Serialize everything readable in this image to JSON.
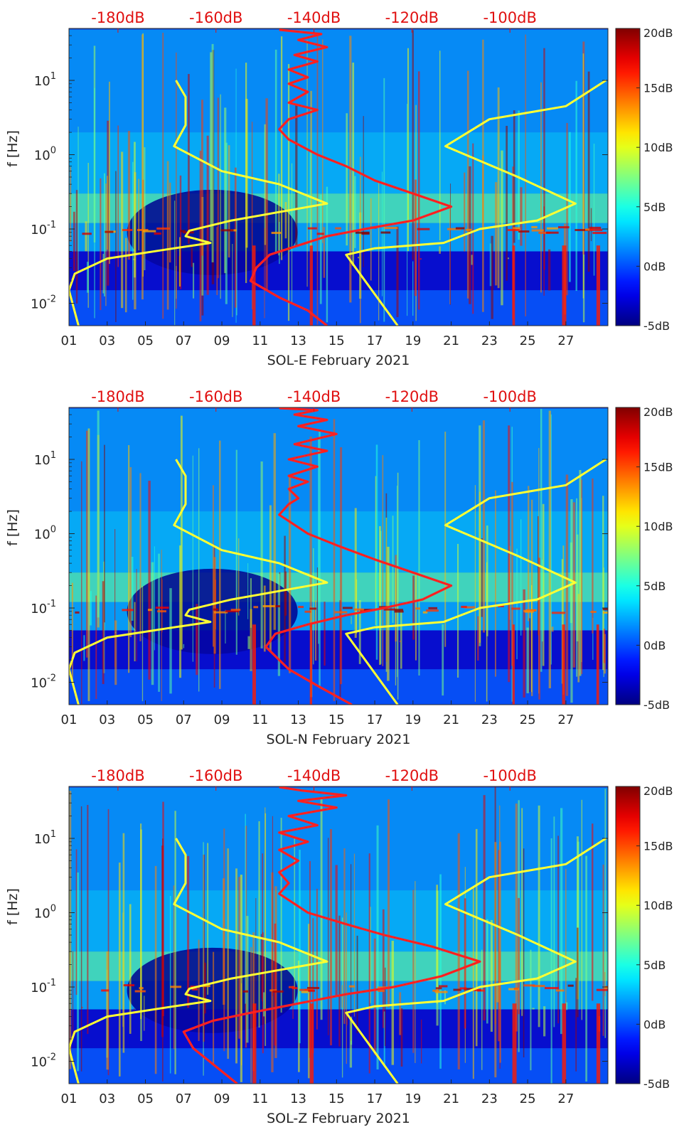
{
  "chart_data": [
    {
      "type": "heatmap",
      "xlabel": "SOL-E February 2021",
      "ylabel": "f [Hz]",
      "yscale": "log",
      "ylim": [
        0.005,
        50
      ],
      "xlim": [
        1,
        29.2
      ],
      "x_tick_labels": [
        "01",
        "03",
        "05",
        "07",
        "09",
        "11",
        "13",
        "15",
        "17",
        "19",
        "21",
        "23",
        "25",
        "27"
      ],
      "x_tick_values": [
        1,
        3,
        5,
        7,
        9,
        11,
        13,
        15,
        17,
        19,
        21,
        23,
        25,
        27
      ],
      "y_tick_labels": [
        {
          "base": "10",
          "exp": "-2"
        },
        {
          "base": "10",
          "exp": "-1"
        },
        {
          "base": "10",
          "exp": "0"
        },
        {
          "base": "10",
          "exp": "1"
        }
      ],
      "y_tick_values": [
        0.01,
        0.1,
        1,
        10
      ],
      "top_axis_labels": [
        "-180dB",
        "-160dB",
        "-140dB",
        "-120dB",
        "-100dB"
      ],
      "top_axis_values": [
        -180,
        -160,
        -140,
        -120,
        -100
      ],
      "top_axis_range": [
        -190,
        -80
      ],
      "colorbar": {
        "labels": [
          "20dB",
          "15dB",
          "10dB",
          "5dB",
          "0dB",
          "-5dB"
        ],
        "values": [
          20,
          15,
          10,
          5,
          0,
          -5
        ],
        "range": [
          -5,
          20
        ],
        "colormap": "jet"
      },
      "series": [
        {
          "color": "#ffff33",
          "points": [
            [
              1.5,
              0.005
            ],
            [
              1,
              0.015
            ],
            [
              1.3,
              0.025
            ],
            [
              3,
              0.04
            ],
            [
              6.5,
              0.055
            ],
            [
              8.4,
              0.065
            ],
            [
              7.1,
              0.08
            ],
            [
              7.3,
              0.095
            ],
            [
              9.5,
              0.13
            ],
            [
              14.5,
              0.22
            ],
            [
              12,
              0.4
            ],
            [
              9,
              0.6
            ],
            [
              6.5,
              1.3
            ],
            [
              7.1,
              2.5
            ],
            [
              7.1,
              6
            ],
            [
              6.6,
              10
            ]
          ]
        },
        {
          "color": "#ffff33",
          "points": [
            [
              18.2,
              0.005
            ],
            [
              15.5,
              0.045
            ],
            [
              17,
              0.055
            ],
            [
              20.6,
              0.065
            ],
            [
              22.5,
              0.1
            ],
            [
              25.5,
              0.13
            ],
            [
              27.5,
              0.22
            ],
            [
              24.5,
              0.5
            ],
            [
              20.7,
              1.3
            ],
            [
              23,
              3
            ],
            [
              27,
              4.5
            ],
            [
              29.1,
              10
            ]
          ]
        },
        {
          "color": "#ff2020",
          "points": [
            [
              14.5,
              0.005
            ],
            [
              13.5,
              0.008
            ],
            [
              12,
              0.012
            ],
            [
              10.5,
              0.02
            ],
            [
              10.8,
              0.03
            ],
            [
              11.5,
              0.045
            ],
            [
              13,
              0.06
            ],
            [
              14.5,
              0.08
            ],
            [
              16.5,
              0.1
            ],
            [
              19,
              0.13
            ],
            [
              21,
              0.2
            ],
            [
              19,
              0.3
            ],
            [
              17,
              0.45
            ],
            [
              15.5,
              0.7
            ],
            [
              14,
              1
            ],
            [
              12.5,
              1.6
            ],
            [
              12,
              2.2
            ],
            [
              12.5,
              3
            ],
            [
              14,
              4
            ],
            [
              12.5,
              5
            ],
            [
              13.5,
              7
            ],
            [
              12.5,
              9
            ],
            [
              13.5,
              11
            ],
            [
              12.5,
              14
            ],
            [
              14,
              18
            ],
            [
              12.8,
              22
            ],
            [
              14.5,
              28
            ],
            [
              13,
              35
            ],
            [
              14.2,
              42
            ],
            [
              12,
              48
            ]
          ]
        }
      ]
    },
    {
      "type": "heatmap",
      "xlabel": "SOL-N February 2021",
      "ylabel": "f [Hz]",
      "yscale": "log",
      "ylim": [
        0.005,
        50
      ],
      "xlim": [
        1,
        29.2
      ],
      "x_tick_labels": [
        "01",
        "03",
        "05",
        "07",
        "09",
        "11",
        "13",
        "15",
        "17",
        "19",
        "21",
        "23",
        "25",
        "27"
      ],
      "x_tick_values": [
        1,
        3,
        5,
        7,
        9,
        11,
        13,
        15,
        17,
        19,
        21,
        23,
        25,
        27
      ],
      "y_tick_labels": [
        {
          "base": "10",
          "exp": "-2"
        },
        {
          "base": "10",
          "exp": "-1"
        },
        {
          "base": "10",
          "exp": "0"
        },
        {
          "base": "10",
          "exp": "1"
        }
      ],
      "y_tick_values": [
        0.01,
        0.1,
        1,
        10
      ],
      "top_axis_labels": [
        "-180dB",
        "-160dB",
        "-140dB",
        "-120dB",
        "-100dB"
      ],
      "top_axis_values": [
        -180,
        -160,
        -140,
        -120,
        -100
      ],
      "top_axis_range": [
        -190,
        -80
      ],
      "colorbar": {
        "labels": [
          "20dB",
          "15dB",
          "10dB",
          "5dB",
          "0dB",
          "-5dB"
        ],
        "values": [
          20,
          15,
          10,
          5,
          0,
          -5
        ],
        "range": [
          -5,
          20
        ],
        "colormap": "jet"
      },
      "series": [
        {
          "color": "#ffff33",
          "points": [
            [
              1.5,
              0.005
            ],
            [
              1,
              0.015
            ],
            [
              1.3,
              0.025
            ],
            [
              3,
              0.04
            ],
            [
              6.5,
              0.055
            ],
            [
              8.4,
              0.065
            ],
            [
              7.1,
              0.08
            ],
            [
              7.3,
              0.095
            ],
            [
              9.5,
              0.13
            ],
            [
              14.5,
              0.22
            ],
            [
              12,
              0.4
            ],
            [
              9,
              0.6
            ],
            [
              6.5,
              1.3
            ],
            [
              7.1,
              2.5
            ],
            [
              7.1,
              6
            ],
            [
              6.6,
              10
            ]
          ]
        },
        {
          "color": "#ffff33",
          "points": [
            [
              18.2,
              0.005
            ],
            [
              15.5,
              0.045
            ],
            [
              17,
              0.055
            ],
            [
              20.6,
              0.065
            ],
            [
              22.5,
              0.1
            ],
            [
              25.5,
              0.13
            ],
            [
              27.5,
              0.22
            ],
            [
              24.5,
              0.5
            ],
            [
              20.7,
              1.3
            ],
            [
              23,
              3
            ],
            [
              27,
              4.5
            ],
            [
              29.1,
              10
            ]
          ]
        },
        {
          "color": "#ff2020",
          "points": [
            [
              15.8,
              0.005
            ],
            [
              14,
              0.009
            ],
            [
              12.5,
              0.015
            ],
            [
              11.3,
              0.03
            ],
            [
              11.8,
              0.045
            ],
            [
              13.5,
              0.06
            ],
            [
              15.5,
              0.08
            ],
            [
              17.5,
              0.1
            ],
            [
              19.5,
              0.13
            ],
            [
              21,
              0.2
            ],
            [
              19,
              0.3
            ],
            [
              17,
              0.45
            ],
            [
              15,
              0.7
            ],
            [
              13.5,
              1
            ],
            [
              12,
              1.8
            ],
            [
              12.5,
              2.5
            ],
            [
              13,
              3
            ],
            [
              12.5,
              4
            ],
            [
              13.5,
              5
            ],
            [
              12.5,
              6
            ],
            [
              14,
              8
            ],
            [
              12.5,
              10
            ],
            [
              14.5,
              13
            ],
            [
              12.8,
              16
            ],
            [
              15,
              22
            ],
            [
              13,
              28
            ],
            [
              14.5,
              34
            ],
            [
              12.8,
              40
            ],
            [
              14,
              46
            ],
            [
              12,
              49
            ]
          ]
        }
      ]
    },
    {
      "type": "heatmap",
      "xlabel": "SOL-Z February 2021",
      "ylabel": "f [Hz]",
      "yscale": "log",
      "ylim": [
        0.005,
        50
      ],
      "xlim": [
        1,
        29.2
      ],
      "x_tick_labels": [
        "01",
        "03",
        "05",
        "07",
        "09",
        "11",
        "13",
        "15",
        "17",
        "19",
        "21",
        "23",
        "25",
        "27"
      ],
      "x_tick_values": [
        1,
        3,
        5,
        7,
        9,
        11,
        13,
        15,
        17,
        19,
        21,
        23,
        25,
        27
      ],
      "y_tick_labels": [
        {
          "base": "10",
          "exp": "-2"
        },
        {
          "base": "10",
          "exp": "-1"
        },
        {
          "base": "10",
          "exp": "0"
        },
        {
          "base": "10",
          "exp": "1"
        }
      ],
      "y_tick_values": [
        0.01,
        0.1,
        1,
        10
      ],
      "top_axis_labels": [
        "-180dB",
        "-160dB",
        "-140dB",
        "-120dB",
        "-100dB"
      ],
      "top_axis_values": [
        -180,
        -160,
        -140,
        -120,
        -100
      ],
      "top_axis_range": [
        -190,
        -80
      ],
      "colorbar": {
        "labels": [
          "20dB",
          "15dB",
          "10dB",
          "5dB",
          "0dB",
          "-5dB"
        ],
        "values": [
          20,
          15,
          10,
          5,
          0,
          -5
        ],
        "range": [
          -5,
          20
        ],
        "colormap": "jet"
      },
      "series": [
        {
          "color": "#ffff33",
          "points": [
            [
              1.5,
              0.005
            ],
            [
              1,
              0.015
            ],
            [
              1.3,
              0.025
            ],
            [
              3,
              0.04
            ],
            [
              6.5,
              0.055
            ],
            [
              8.4,
              0.065
            ],
            [
              7.1,
              0.08
            ],
            [
              7.3,
              0.095
            ],
            [
              9.5,
              0.13
            ],
            [
              14.5,
              0.22
            ],
            [
              12,
              0.4
            ],
            [
              9,
              0.6
            ],
            [
              6.5,
              1.3
            ],
            [
              7.1,
              2.5
            ],
            [
              7.1,
              6
            ],
            [
              6.6,
              10
            ]
          ]
        },
        {
          "color": "#ffff33",
          "points": [
            [
              18.2,
              0.005
            ],
            [
              15.5,
              0.045
            ],
            [
              17,
              0.055
            ],
            [
              20.6,
              0.065
            ],
            [
              22.5,
              0.1
            ],
            [
              25.5,
              0.13
            ],
            [
              27.5,
              0.22
            ],
            [
              24.5,
              0.5
            ],
            [
              20.7,
              1.3
            ],
            [
              23,
              3
            ],
            [
              27,
              4.5
            ],
            [
              29.1,
              10
            ]
          ]
        },
        {
          "color": "#ff2020",
          "points": [
            [
              9.8,
              0.005
            ],
            [
              7.5,
              0.015
            ],
            [
              7,
              0.025
            ],
            [
              8.5,
              0.035
            ],
            [
              10.5,
              0.045
            ],
            [
              13,
              0.06
            ],
            [
              15.5,
              0.08
            ],
            [
              18,
              0.1
            ],
            [
              20.5,
              0.14
            ],
            [
              22.5,
              0.22
            ],
            [
              20,
              0.35
            ],
            [
              17.5,
              0.5
            ],
            [
              15.5,
              0.7
            ],
            [
              13.5,
              1
            ],
            [
              12,
              1.8
            ],
            [
              12.5,
              2.5
            ],
            [
              12,
              3.5
            ],
            [
              13,
              5
            ],
            [
              12,
              7
            ],
            [
              13.5,
              9
            ],
            [
              12,
              12
            ],
            [
              14,
              15
            ],
            [
              12.5,
              20
            ],
            [
              15,
              26
            ],
            [
              13,
              32
            ],
            [
              15.5,
              38
            ],
            [
              13.2,
              44
            ],
            [
              12,
              49
            ]
          ]
        }
      ]
    }
  ]
}
